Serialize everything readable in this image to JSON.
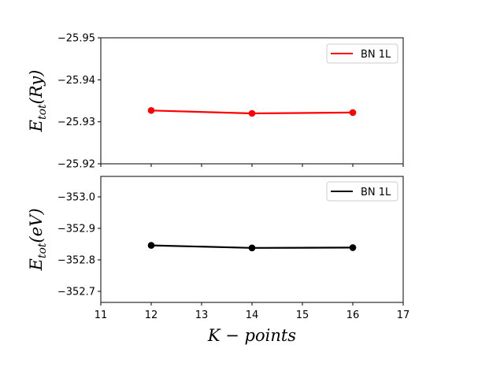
{
  "chart_data": [
    {
      "type": "line",
      "x": [
        12,
        14,
        16
      ],
      "series": [
        {
          "name": "BN 1L",
          "values": [
            -25.9327,
            -25.932,
            -25.9322
          ],
          "color": "#ff0000"
        }
      ],
      "ylabel": {
        "base": "E",
        "sub": "tot",
        "unit": "(Ry)"
      },
      "xlim": [
        11,
        17
      ],
      "ylim": [
        -25.92,
        -25.95
      ],
      "y_inverted": true,
      "yticks": [
        "−25.95",
        "−25.94",
        "−25.93",
        "−25.92"
      ],
      "grid": false,
      "legend_position": "upper right"
    },
    {
      "type": "line",
      "x": [
        12,
        14,
        16
      ],
      "series": [
        {
          "name": "BN 1L",
          "values": [
            -352.846,
            -352.838,
            -352.839
          ],
          "color": "#000000"
        }
      ],
      "ylabel": {
        "base": "E",
        "sub": "tot",
        "unit": "(eV)"
      },
      "xlabel": "K − points",
      "xlim": [
        11,
        17
      ],
      "ylim": [
        -352.665,
        -353.065
      ],
      "y_inverted": true,
      "yticks": [
        "−353.0",
        "−352.9",
        "−352.8",
        "−352.7"
      ],
      "xticks": [
        "11",
        "12",
        "13",
        "14",
        "15",
        "16",
        "17"
      ],
      "grid": false,
      "legend_position": "upper right"
    }
  ]
}
